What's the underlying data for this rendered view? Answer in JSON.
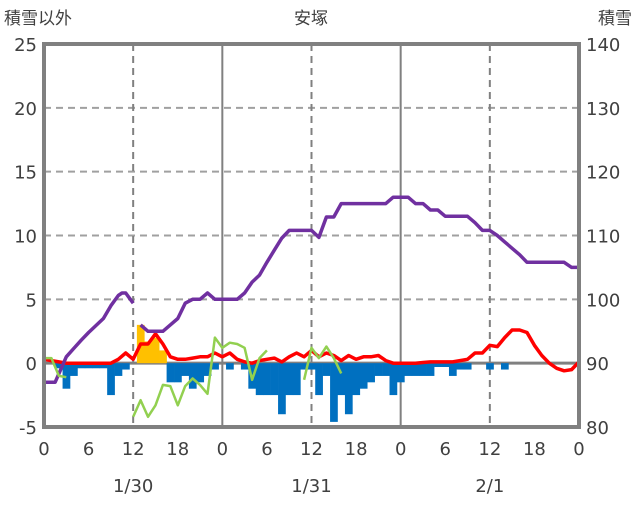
{
  "chart_data": {
    "type": "bar+line",
    "title": "安塚",
    "ylabel_left": "積雪以外",
    "ylabel_right": "積雪",
    "ylim_left": [
      -5,
      25
    ],
    "ylim_right": [
      80,
      140
    ],
    "yticks_left": [
      -5,
      0,
      5,
      10,
      15,
      20,
      25
    ],
    "yticks_right": [
      80,
      90,
      100,
      110,
      120,
      130,
      140
    ],
    "xlim_hours": [
      0,
      72
    ],
    "xtick_labels": [
      "0",
      "6",
      "12",
      "18",
      "0",
      "6",
      "12",
      "18",
      "0",
      "6",
      "12",
      "18",
      "0"
    ],
    "date_labels": [
      "1/30",
      "1/31",
      "2/1"
    ],
    "grid": "dashed horizontal at 5-unit steps; dashed vertical at noon; solid vertical at midnight",
    "colors": {
      "bar_positive": "#FFC000",
      "bar_negative": "#0070C0",
      "red": "#FF0000",
      "purple": "#7030A0",
      "green": "#92D050",
      "axis": "#808080"
    },
    "bars_hourly": [
      0,
      0,
      -0.4,
      -2,
      -1,
      -0.4,
      -0.4,
      -0.4,
      -0.4,
      -2.5,
      -1,
      -0.5,
      0,
      3,
      1.7,
      2,
      1,
      -1.5,
      -1.5,
      -1,
      -2,
      -1.5,
      -1,
      -0.5,
      0,
      -0.5,
      0,
      -0.5,
      -2,
      -2.5,
      -2.5,
      -2.5,
      -4,
      -2.5,
      -2.5,
      -0.5,
      -0.5,
      -2.5,
      -1,
      -4.6,
      -2.5,
      -4,
      -2.5,
      -2,
      -1.5,
      -1,
      -1,
      -2.5,
      -1.5,
      -1,
      -1,
      -1,
      -1,
      -0.3,
      -0.3,
      -1,
      -0.5,
      -0.5,
      0,
      0,
      -0.5,
      0,
      -0.5,
      0,
      0,
      0,
      0,
      0,
      0,
      0,
      0,
      0
    ],
    "series": [
      {
        "name": "red",
        "axis": "left",
        "x": [
          0,
          1,
          2,
          3,
          4,
          5,
          6,
          7,
          8,
          9,
          10,
          11,
          12,
          13,
          14,
          15,
          16,
          17,
          18,
          19,
          20,
          21,
          22,
          23,
          24,
          25,
          26,
          27,
          28,
          29,
          30,
          31,
          32,
          33,
          34,
          35,
          36,
          37,
          38,
          39,
          40,
          41,
          42,
          43,
          44,
          45,
          46,
          47,
          48,
          49,
          50,
          51,
          52,
          53,
          54,
          55,
          56,
          57,
          58,
          59,
          60,
          61,
          62,
          63,
          64,
          65,
          66,
          67,
          68,
          69,
          70,
          71,
          72
        ],
        "values": [
          0.3,
          0.2,
          0.1,
          0,
          0,
          0,
          0,
          0,
          0,
          0,
          0.3,
          0.8,
          0.3,
          1.5,
          1.5,
          2.3,
          1.5,
          0.5,
          0.3,
          0.3,
          0.4,
          0.5,
          0.5,
          0.8,
          0.5,
          0.8,
          0.3,
          0.1,
          0,
          0.2,
          0.3,
          0.4,
          0.1,
          0.5,
          0.8,
          0.5,
          1,
          0.5,
          0.8,
          0.6,
          0.2,
          0.6,
          0.3,
          0.5,
          0.5,
          0.6,
          0.2,
          0,
          0,
          0,
          0,
          0.05,
          0.1,
          0.1,
          0.1,
          0.1,
          0.2,
          0.3,
          0.8,
          0.8,
          1.4,
          1.3,
          2,
          2.6,
          2.6,
          2.4,
          1.4,
          0.6,
          0,
          -0.4,
          -0.6,
          -0.5,
          0.1
        ]
      },
      {
        "name": "purple",
        "axis": "right",
        "segments": [
          {
            "x": [
              0,
              1.5,
              3,
              4,
              5,
              6,
              7,
              8,
              9,
              10,
              10.5,
              11,
              12
            ],
            "values": [
              87,
              87,
              91,
              92.3,
              93.6,
              94.8,
              95.9,
              97,
              99,
              100.6,
              101,
              101,
              99.4
            ]
          },
          {
            "x": [
              13,
              14,
              15,
              16,
              17,
              18,
              19,
              20,
              21,
              22,
              23,
              24,
              25,
              26,
              27,
              28,
              29,
              30,
              31,
              32,
              33,
              34,
              35,
              36,
              37,
              38,
              39,
              40,
              41,
              42,
              43,
              44,
              45,
              46,
              47,
              48,
              49,
              50,
              51,
              52,
              53,
              54,
              55,
              56,
              57,
              58,
              59,
              60,
              61,
              62,
              63,
              64,
              65,
              66,
              67,
              68,
              69,
              70,
              71,
              72
            ],
            "values": [
              96,
              95,
              95,
              95,
              96,
              97,
              99.4,
              100,
              100,
              101,
              100,
              100,
              100,
              100,
              101,
              102.7,
              103.8,
              105.8,
              107.7,
              109.6,
              110.8,
              110.8,
              110.8,
              110.8,
              109.7,
              112.9,
              112.9,
              115,
              115,
              115,
              115,
              115,
              115,
              115,
              116,
              116,
              116,
              115,
              115,
              114,
              114,
              113,
              113,
              113,
              113,
              112,
              110.8,
              110.8,
              110,
              109,
              108,
              107,
              105.8,
              105.8,
              105.8,
              105.8,
              105.8,
              105.8,
              105,
              105
            ]
          }
        ]
      },
      {
        "name": "green",
        "axis": "left",
        "segments": [
          {
            "x": [
              0,
              1,
              2,
              3
            ],
            "values": [
              0.4,
              0.4,
              -1,
              -1.1
            ]
          },
          {
            "x": [
              12,
              13,
              14,
              15,
              16,
              17,
              18,
              19,
              20,
              21,
              22,
              23,
              24,
              25,
              26,
              27,
              28,
              29,
              30
            ],
            "values": [
              -4.2,
              -2.9,
              -4.2,
              -3.3,
              -1.7,
              -1.8,
              -3.3,
              -1.8,
              -1.2,
              -1.7,
              -2.4,
              2,
              1.2,
              1.6,
              1.5,
              1.2,
              -1.3,
              0.4,
              1
            ]
          },
          {
            "x": [
              35,
              36,
              37,
              38,
              39,
              40
            ],
            "values": [
              -1.3,
              1.2,
              0.4,
              1.3,
              0.4,
              -0.8
            ]
          }
        ]
      }
    ]
  }
}
